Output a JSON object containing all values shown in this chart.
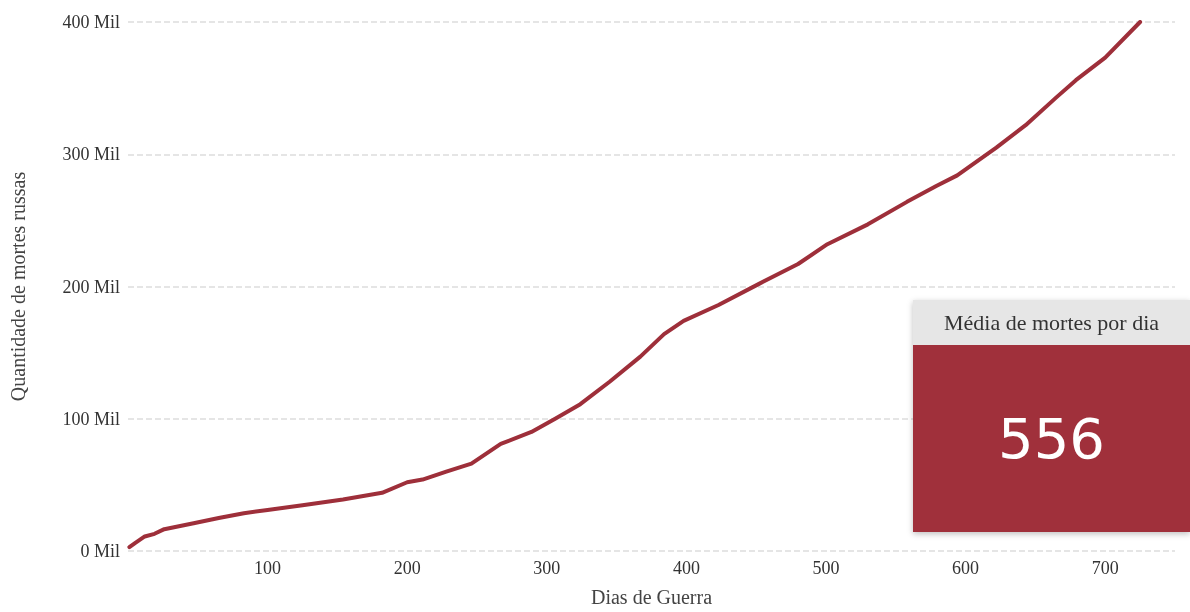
{
  "chart_data": [
    {
      "type": "line",
      "xlabel": "Dias de Guerra",
      "ylabel": "Quantidade de mortes russas",
      "color": "#9e2f3a",
      "x": [
        1,
        5,
        12,
        19,
        26,
        47,
        65,
        83,
        100,
        125,
        154,
        182,
        200,
        211,
        228,
        246,
        267,
        289,
        306,
        324,
        345,
        367,
        384,
        398,
        423,
        452,
        480,
        501,
        530,
        558,
        579,
        594,
        622,
        643,
        665,
        679,
        700,
        725
      ],
      "values": [
        3,
        6,
        11,
        13,
        16.5,
        21,
        25,
        28.6,
        31,
        34.6,
        39,
        44,
        52,
        54,
        60,
        66,
        81,
        90,
        100,
        111,
        128,
        147,
        164,
        174,
        186,
        202,
        217,
        232,
        247,
        264,
        276,
        284,
        305,
        322,
        343,
        356,
        373,
        400
      ],
      "xlim": [
        0,
        750
      ],
      "xticks": [
        100,
        200,
        300,
        400,
        500,
        600,
        700
      ],
      "ylim": [
        0,
        400
      ],
      "yticks": [
        {
          "value": 0,
          "label": "0 Mil"
        },
        {
          "value": 100,
          "label": "100 Mil"
        },
        {
          "value": 200,
          "label": "200 Mil"
        },
        {
          "value": 300,
          "label": "300 Mil"
        },
        {
          "value": 400,
          "label": "400 Mil"
        }
      ],
      "grid": "y",
      "marker": "none",
      "line_style": "solid"
    },
    {
      "type": "other",
      "title": "Média de mortes por dia",
      "annotations": [
        "556"
      ]
    }
  ]
}
